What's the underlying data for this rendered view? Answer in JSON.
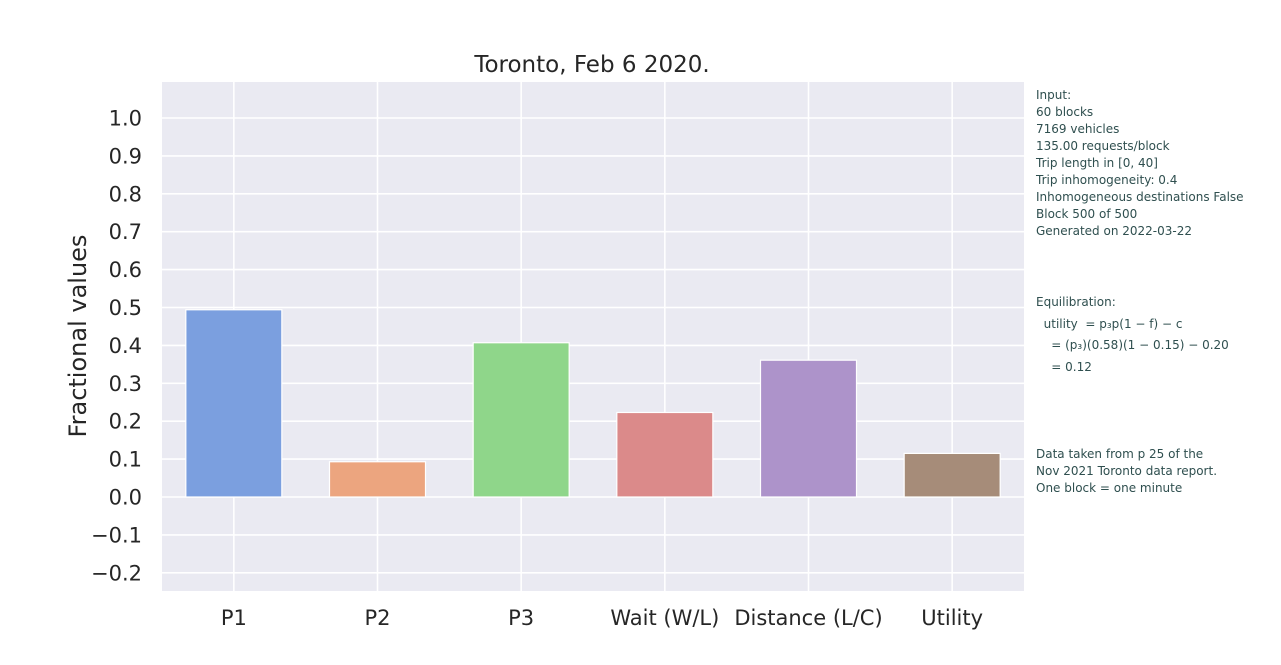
{
  "colors": {
    "plot_background": "#eaeaf2",
    "grid": "#ffffff",
    "bars": [
      "#7b9fdf",
      "#eca57f",
      "#8fd68a",
      "#db8a8a",
      "#ad93ca",
      "#a68c79"
    ]
  },
  "chart_data": {
    "type": "bar",
    "title": "Toronto, Feb 6 2020.",
    "xlabel": "",
    "ylabel": "Fractional values",
    "categories": [
      "P1",
      "P2",
      "P3",
      "Wait (W/L)",
      "Distance (L/C)",
      "Utility"
    ],
    "values": [
      0.494,
      0.093,
      0.407,
      0.223,
      0.361,
      0.115
    ],
    "ylim": [
      -0.25,
      1.1
    ],
    "yticks": [
      -0.2,
      -0.1,
      0.0,
      0.1,
      0.2,
      0.3,
      0.4,
      0.5,
      0.6,
      0.7,
      0.8,
      0.9,
      1.0
    ],
    "grid": true,
    "legend": "none"
  },
  "side_text": {
    "input": [
      "Input:",
      "60 blocks",
      "7169 vehicles",
      "135.00 requests/block",
      "Trip length in [0, 40]",
      "Trip inhomogeneity: 0.4",
      "Inhomogeneous destinations False",
      "Block 500 of 500",
      "Generated on 2022-03-22"
    ],
    "equilibration": [
      "Equilibration:",
      "  utility  = p₃p(1 − f) − c",
      "    = (p₃)(0.58)(1 − 0.15) − 0.20",
      "    = 0.12"
    ],
    "note": [
      "Data taken from p 25 of the",
      "Nov 2021 Toronto data report.",
      "One block = one minute"
    ]
  }
}
